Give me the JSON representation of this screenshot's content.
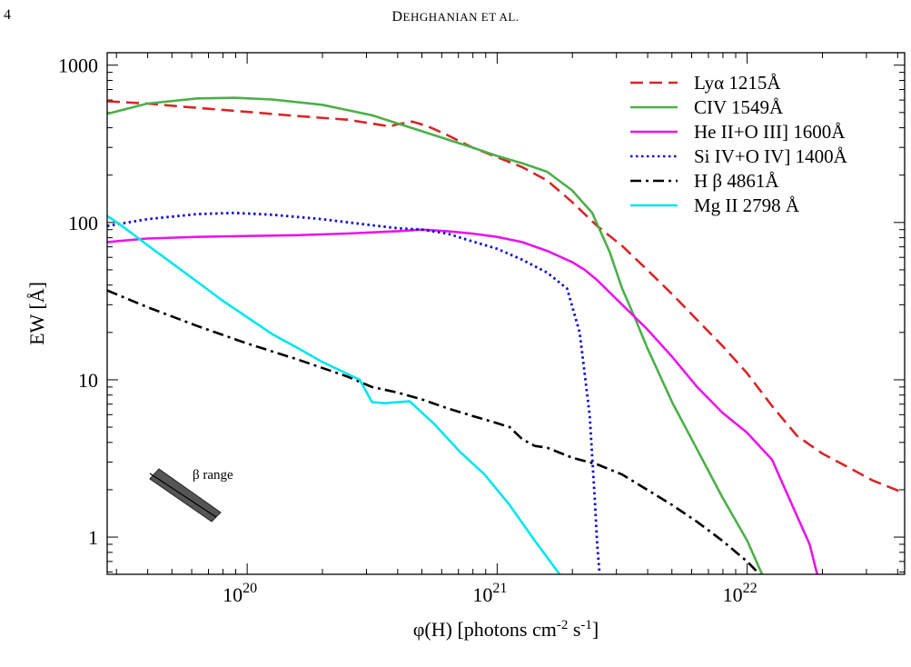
{
  "page": {
    "page_number": "4",
    "running_head_first_letter": "D",
    "running_head_rest": "EHGHANIAN ET AL."
  },
  "chart_data": {
    "type": "line",
    "title": "",
    "xlabel": "φ(H) [photons cm⁻² s⁻¹]",
    "ylabel": "EW [Å]",
    "xscale": "log",
    "yscale": "log",
    "xlim_log10": [
      19.44,
      22.63
    ],
    "ylim": [
      0.58,
      1200
    ],
    "legend_position": "top-right",
    "x_ticks": [
      {
        "log10": 20,
        "base": "10",
        "exp": "20"
      },
      {
        "log10": 21,
        "base": "10",
        "exp": "21"
      },
      {
        "log10": 22,
        "base": "10",
        "exp": "22"
      }
    ],
    "y_ticks": [
      {
        "value": 1,
        "label": "1"
      },
      {
        "value": 10,
        "label": "10"
      },
      {
        "value": 100,
        "label": "100"
      },
      {
        "value": 1000,
        "label": "1000"
      }
    ],
    "series": [
      {
        "name": "Lyα 1215Å",
        "color": "#d62728",
        "style": "dashed",
        "points": [
          [
            19.44,
            590
          ],
          [
            19.6,
            570
          ],
          [
            19.8,
            535
          ],
          [
            20.0,
            505
          ],
          [
            20.2,
            475
          ],
          [
            20.4,
            450
          ],
          [
            20.5,
            425
          ],
          [
            20.57,
            408
          ],
          [
            20.6,
            420
          ],
          [
            20.66,
            438
          ],
          [
            20.72,
            410
          ],
          [
            20.8,
            360
          ],
          [
            20.9,
            300
          ],
          [
            21.0,
            260
          ],
          [
            21.1,
            225
          ],
          [
            21.2,
            185
          ],
          [
            21.3,
            135
          ],
          [
            21.4,
            95
          ],
          [
            21.5,
            71
          ],
          [
            21.6,
            50
          ],
          [
            21.7,
            35
          ],
          [
            21.8,
            24
          ],
          [
            21.9,
            16.5
          ],
          [
            22.0,
            11
          ],
          [
            22.1,
            6.8
          ],
          [
            22.2,
            4.4
          ],
          [
            22.3,
            3.4
          ],
          [
            22.4,
            2.8
          ],
          [
            22.5,
            2.3
          ],
          [
            22.63,
            1.9
          ]
        ]
      },
      {
        "name": "CIV 1549Å",
        "color": "#4daf4a",
        "style": "solid",
        "points": [
          [
            19.44,
            490
          ],
          [
            19.6,
            570
          ],
          [
            19.8,
            615
          ],
          [
            19.95,
            620
          ],
          [
            20.1,
            605
          ],
          [
            20.3,
            560
          ],
          [
            20.5,
            480
          ],
          [
            20.7,
            380
          ],
          [
            20.9,
            300
          ],
          [
            21.0,
            265
          ],
          [
            21.1,
            238
          ],
          [
            21.2,
            210
          ],
          [
            21.3,
            160
          ],
          [
            21.38,
            115
          ],
          [
            21.45,
            65
          ],
          [
            21.5,
            38
          ],
          [
            21.55,
            25
          ],
          [
            21.6,
            16
          ],
          [
            21.7,
            7.2
          ],
          [
            21.8,
            3.6
          ],
          [
            21.9,
            1.8
          ],
          [
            22.0,
            0.95
          ],
          [
            22.06,
            0.58
          ]
        ]
      },
      {
        "name": "He II+O III] 1600Å",
        "color": "#e816e8",
        "style": "solid",
        "points": [
          [
            19.44,
            75
          ],
          [
            19.6,
            79
          ],
          [
            19.8,
            81
          ],
          [
            20.0,
            82
          ],
          [
            20.2,
            83
          ],
          [
            20.4,
            85
          ],
          [
            20.6,
            88
          ],
          [
            20.7,
            90
          ],
          [
            20.8,
            88
          ],
          [
            20.9,
            85
          ],
          [
            21.0,
            81
          ],
          [
            21.1,
            75
          ],
          [
            21.2,
            66
          ],
          [
            21.3,
            56
          ],
          [
            21.35,
            50
          ],
          [
            21.4,
            43
          ],
          [
            21.5,
            30
          ],
          [
            21.6,
            21
          ],
          [
            21.7,
            14
          ],
          [
            21.8,
            9
          ],
          [
            21.9,
            6.2
          ],
          [
            22.0,
            4.6
          ],
          [
            22.1,
            3.1
          ],
          [
            22.18,
            1.6
          ],
          [
            22.25,
            0.9
          ],
          [
            22.28,
            0.58
          ]
        ]
      },
      {
        "name": "Si IV+O IV] 1400Å",
        "color": "#1010d0",
        "style": "dotted",
        "points": [
          [
            19.44,
            95
          ],
          [
            19.6,
            105
          ],
          [
            19.8,
            113
          ],
          [
            19.95,
            115
          ],
          [
            20.1,
            112
          ],
          [
            20.3,
            105
          ],
          [
            20.5,
            96
          ],
          [
            20.6,
            92
          ],
          [
            20.7,
            90
          ],
          [
            20.8,
            85
          ],
          [
            20.9,
            76
          ],
          [
            21.0,
            68
          ],
          [
            21.1,
            58
          ],
          [
            21.2,
            48
          ],
          [
            21.28,
            38
          ],
          [
            21.33,
            20
          ],
          [
            21.37,
            6
          ],
          [
            21.39,
            1.8
          ],
          [
            21.4,
            0.9
          ],
          [
            21.41,
            0.58
          ]
        ]
      },
      {
        "name": "H β 4861Å",
        "color": "#000000",
        "style": "dashdot",
        "points": [
          [
            19.44,
            37
          ],
          [
            19.6,
            29
          ],
          [
            19.8,
            22
          ],
          [
            20.0,
            17
          ],
          [
            20.2,
            13.5
          ],
          [
            20.4,
            10.5
          ],
          [
            20.5,
            9
          ],
          [
            20.6,
            8.3
          ],
          [
            20.7,
            7.5
          ],
          [
            20.8,
            6.6
          ],
          [
            20.9,
            5.9
          ],
          [
            21.0,
            5.3
          ],
          [
            21.05,
            5.0
          ],
          [
            21.1,
            4.2
          ],
          [
            21.15,
            3.8
          ],
          [
            21.2,
            3.7
          ],
          [
            21.3,
            3.2
          ],
          [
            21.4,
            2.9
          ],
          [
            21.5,
            2.5
          ],
          [
            21.6,
            2.0
          ],
          [
            21.7,
            1.6
          ],
          [
            21.8,
            1.25
          ],
          [
            21.9,
            0.95
          ],
          [
            22.0,
            0.7
          ],
          [
            22.05,
            0.58
          ]
        ]
      },
      {
        "name": "Mg II 2798 Å",
        "color": "#00e5ee",
        "style": "solid",
        "points": [
          [
            19.44,
            110
          ],
          [
            19.5,
            95
          ],
          [
            19.6,
            72
          ],
          [
            19.7,
            55
          ],
          [
            19.8,
            42
          ],
          [
            19.9,
            32
          ],
          [
            20.0,
            25
          ],
          [
            20.1,
            19.5
          ],
          [
            20.2,
            16
          ],
          [
            20.3,
            13
          ],
          [
            20.45,
            10
          ],
          [
            20.5,
            7.2
          ],
          [
            20.55,
            7.1
          ],
          [
            20.65,
            7.3
          ],
          [
            20.75,
            5.2
          ],
          [
            20.85,
            3.5
          ],
          [
            20.95,
            2.5
          ],
          [
            21.05,
            1.6
          ],
          [
            21.15,
            0.95
          ],
          [
            21.25,
            0.58
          ]
        ]
      }
    ],
    "annotation": {
      "label": "β range"
    }
  }
}
